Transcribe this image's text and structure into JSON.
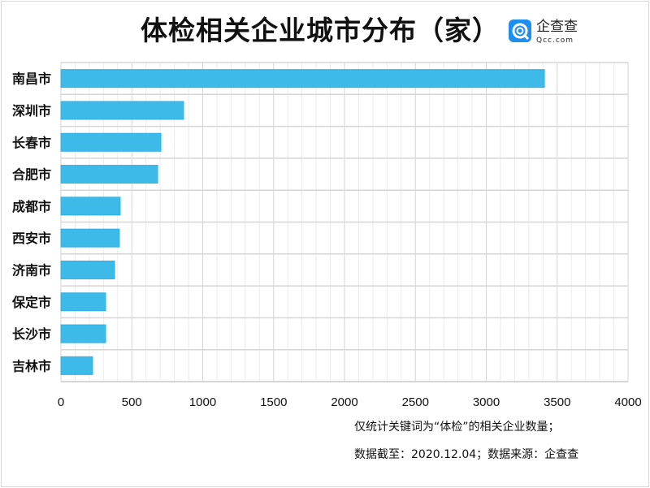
{
  "header": {
    "title": "体检相关企业城市分布（家）",
    "logo_cn": "企查查",
    "logo_en": "Qcc.com",
    "logo_color": "#1e8ef0"
  },
  "chart_data": {
    "type": "bar",
    "orientation": "horizontal",
    "title": "体检相关企业城市分布（家）",
    "categories": [
      "南昌市",
      "深圳市",
      "长春市",
      "合肥市",
      "成都市",
      "西安市",
      "济南市",
      "保定市",
      "长沙市",
      "吉林市"
    ],
    "values": [
      3410,
      865,
      705,
      682,
      418,
      412,
      378,
      315,
      315,
      223
    ],
    "xlim": [
      0,
      4000
    ],
    "xticks": [
      0,
      500,
      1000,
      1500,
      2000,
      2500,
      3000,
      3500,
      4000
    ],
    "grid": true,
    "bar_color": "#3dbae8"
  },
  "notes": [
    "仅统计关键词为“体检”的相关企业数量；",
    "数据截至：2020.12.04；数据来源：企查查"
  ]
}
